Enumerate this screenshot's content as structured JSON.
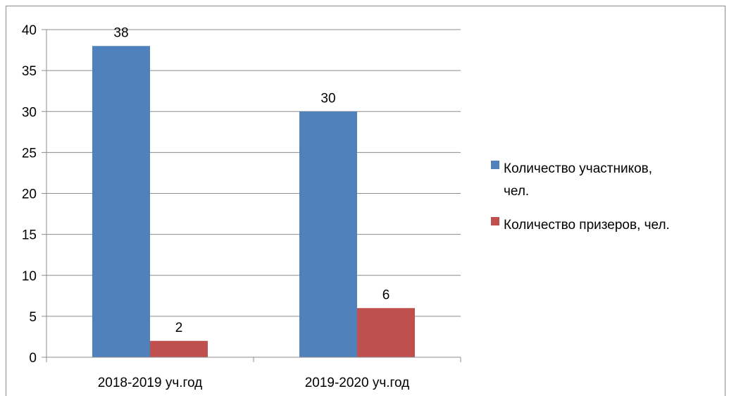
{
  "chart_data": {
    "type": "bar",
    "categories": [
      "2018-2019 уч.год",
      "2019-2020 уч.год"
    ],
    "series": [
      {
        "name": "Количество участников, чел.",
        "values": [
          38,
          30
        ],
        "color": "#4F81BD",
        "legend_lines": [
          "Количество участников,",
          "чел."
        ]
      },
      {
        "name": "Количество призеров, чел.",
        "values": [
          2,
          6
        ],
        "color": "#C0504D",
        "legend_lines": [
          "Количество призеров, чел."
        ]
      }
    ],
    "ylim": [
      0,
      40
    ],
    "yticks": [
      0,
      5,
      10,
      15,
      20,
      25,
      30,
      35,
      40
    ],
    "grid": true,
    "data_labels": true,
    "legend_position": "right",
    "title": "",
    "xlabel": "",
    "ylabel": ""
  }
}
